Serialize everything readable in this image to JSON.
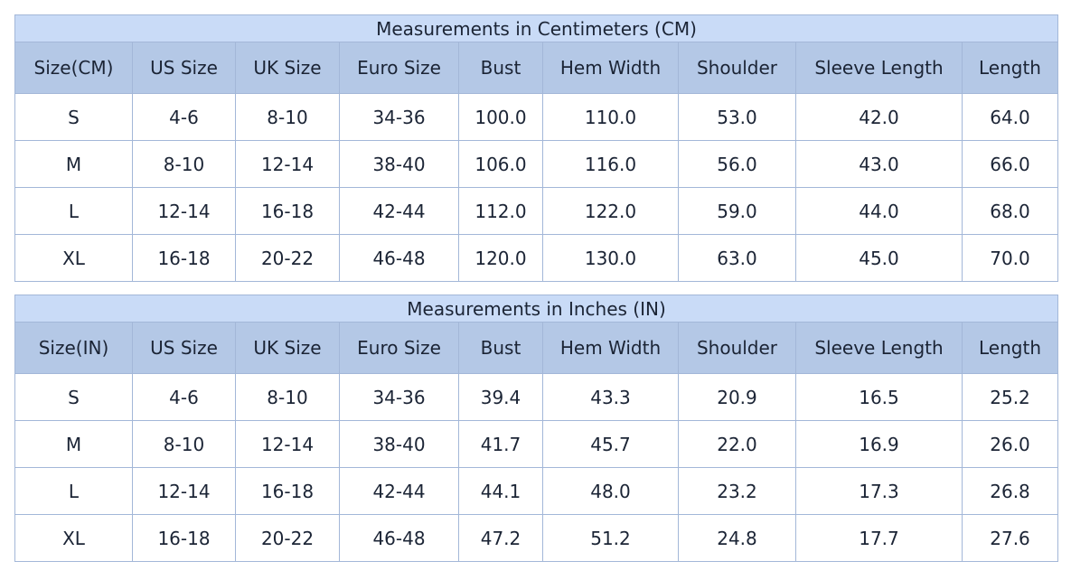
{
  "tables": [
    {
      "title": "Measurements in Centimeters (CM)",
      "headers": [
        "Size(CM)",
        "US Size",
        "UK Size",
        "Euro Size",
        "Bust",
        "Hem Width",
        "Shoulder",
        "Sleeve Length",
        "Length"
      ],
      "rows": [
        [
          "S",
          "4-6",
          "8-10",
          "34-36",
          "100.0",
          "110.0",
          "53.0",
          "42.0",
          "64.0"
        ],
        [
          "M",
          "8-10",
          "12-14",
          "38-40",
          "106.0",
          "116.0",
          "56.0",
          "43.0",
          "66.0"
        ],
        [
          "L",
          "12-14",
          "16-18",
          "42-44",
          "112.0",
          "122.0",
          "59.0",
          "44.0",
          "68.0"
        ],
        [
          "XL",
          "16-18",
          "20-22",
          "46-48",
          "120.0",
          "130.0",
          "63.0",
          "45.0",
          "70.0"
        ]
      ]
    },
    {
      "title": "Measurements in Inches (IN)",
      "headers": [
        "Size(IN)",
        "US Size",
        "UK Size",
        "Euro Size",
        "Bust",
        "Hem Width",
        "Shoulder",
        "Sleeve Length",
        "Length"
      ],
      "rows": [
        [
          "S",
          "4-6",
          "8-10",
          "34-36",
          "39.4",
          "43.3",
          "20.9",
          "16.5",
          "25.2"
        ],
        [
          "M",
          "8-10",
          "12-14",
          "38-40",
          "41.7",
          "45.7",
          "22.0",
          "16.9",
          "26.0"
        ],
        [
          "L",
          "12-14",
          "16-18",
          "42-44",
          "44.1",
          "48.0",
          "23.2",
          "17.3",
          "26.8"
        ],
        [
          "XL",
          "16-18",
          "20-22",
          "46-48",
          "47.2",
          "51.2",
          "24.8",
          "17.7",
          "27.6"
        ]
      ]
    }
  ]
}
